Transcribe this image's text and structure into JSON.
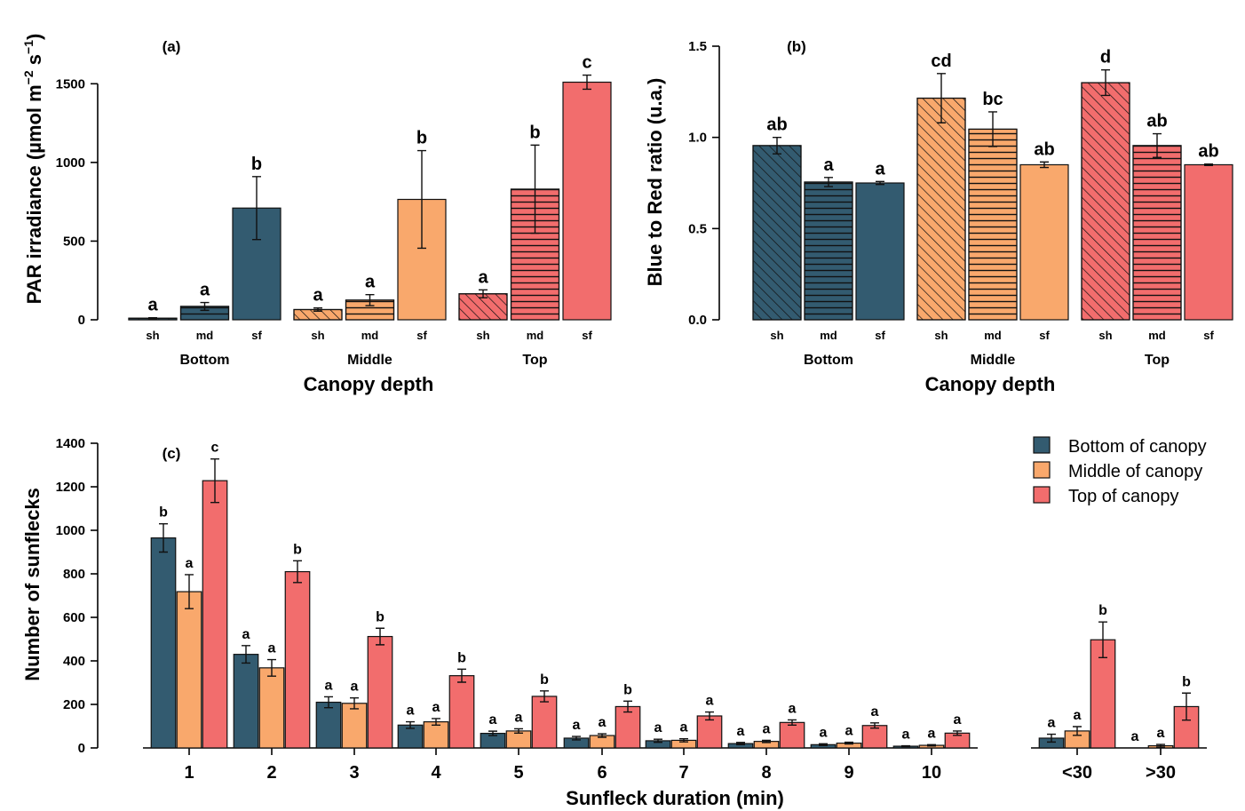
{
  "colors": {
    "bottom": "#335b70",
    "middle": "#f9a86c",
    "top": "#f26d6d"
  },
  "legend": {
    "position": "top-right",
    "items": [
      {
        "label": "Bottom of canopy",
        "color_key": "bottom"
      },
      {
        "label": "Middle of canopy",
        "color_key": "middle"
      },
      {
        "label": "Top of canopy",
        "color_key": "top"
      }
    ]
  },
  "chart_data": [
    {
      "id": "a",
      "panel_label": "(a)",
      "type": "bar",
      "ylabel": "PAR irradiance (µmol m",
      "ylabel_sup1": "−2",
      "ylabel_mid": " s",
      "ylabel_sup2": "−1",
      "ylabel_end": ")",
      "xlabel": "Canopy depth",
      "ylim": [
        0,
        1750
      ],
      "yticks": [
        0,
        500,
        1000,
        1500
      ],
      "ytick_labels": [
        "0",
        "500",
        "1000",
        "1500"
      ],
      "groups": [
        "Bottom",
        "Middle",
        "Top"
      ],
      "categories": [
        "sh",
        "md",
        "sf"
      ],
      "bars": [
        {
          "group": "Bottom",
          "category": "sh",
          "value": 10,
          "err": 3,
          "sig": "a",
          "color_key": "bottom",
          "pattern": "diagonal"
        },
        {
          "group": "Bottom",
          "category": "md",
          "value": 85,
          "err": 25,
          "sig": "a",
          "color_key": "bottom",
          "pattern": "horizontal"
        },
        {
          "group": "Bottom",
          "category": "sf",
          "value": 710,
          "err": 200,
          "sig": "b",
          "color_key": "bottom",
          "pattern": "solid"
        },
        {
          "group": "Middle",
          "category": "sh",
          "value": 65,
          "err": 10,
          "sig": "a",
          "color_key": "middle",
          "pattern": "diagonal"
        },
        {
          "group": "Middle",
          "category": "md",
          "value": 125,
          "err": 35,
          "sig": "a",
          "color_key": "middle",
          "pattern": "horizontal"
        },
        {
          "group": "Middle",
          "category": "sf",
          "value": 765,
          "err": 310,
          "sig": "b",
          "color_key": "middle",
          "pattern": "solid"
        },
        {
          "group": "Top",
          "category": "sh",
          "value": 165,
          "err": 25,
          "sig": "a",
          "color_key": "top",
          "pattern": "diagonal"
        },
        {
          "group": "Top",
          "category": "md",
          "value": 830,
          "err": 280,
          "sig": "b",
          "color_key": "top",
          "pattern": "horizontal"
        },
        {
          "group": "Top",
          "category": "sf",
          "value": 1510,
          "err": 45,
          "sig": "c",
          "color_key": "top",
          "pattern": "solid"
        }
      ]
    },
    {
      "id": "b",
      "panel_label": "(b)",
      "type": "bar",
      "ylabel": "Blue to Red ratio (u.a.)",
      "xlabel": "Canopy depth",
      "ylim": [
        0,
        1.5
      ],
      "yticks": [
        0,
        0.5,
        1.0,
        1.5
      ],
      "ytick_labels": [
        "0.0",
        "0.5",
        "1.0",
        "1.5"
      ],
      "groups": [
        "Bottom",
        "Middle",
        "Top"
      ],
      "categories": [
        "sh",
        "md",
        "sf"
      ],
      "bars": [
        {
          "group": "Bottom",
          "category": "sh",
          "value": 0.955,
          "err": 0.045,
          "sig": "ab",
          "color_key": "bottom",
          "pattern": "diagonal"
        },
        {
          "group": "Bottom",
          "category": "md",
          "value": 0.755,
          "err": 0.025,
          "sig": "a",
          "color_key": "bottom",
          "pattern": "horizontal"
        },
        {
          "group": "Bottom",
          "category": "sf",
          "value": 0.75,
          "err": 0.008,
          "sig": "a",
          "color_key": "bottom",
          "pattern": "solid"
        },
        {
          "group": "Middle",
          "category": "sh",
          "value": 1.215,
          "err": 0.135,
          "sig": "cd",
          "color_key": "middle",
          "pattern": "diagonal"
        },
        {
          "group": "Middle",
          "category": "md",
          "value": 1.045,
          "err": 0.095,
          "sig": "bc",
          "color_key": "middle",
          "pattern": "horizontal"
        },
        {
          "group": "Middle",
          "category": "sf",
          "value": 0.85,
          "err": 0.015,
          "sig": "ab",
          "color_key": "middle",
          "pattern": "solid"
        },
        {
          "group": "Top",
          "category": "sh",
          "value": 1.3,
          "err": 0.07,
          "sig": "d",
          "color_key": "top",
          "pattern": "diagonal"
        },
        {
          "group": "Top",
          "category": "md",
          "value": 0.955,
          "err": 0.065,
          "sig": "ab",
          "color_key": "top",
          "pattern": "horizontal"
        },
        {
          "group": "Top",
          "category": "sf",
          "value": 0.85,
          "err": 0.004,
          "sig": "ab",
          "color_key": "top",
          "pattern": "solid"
        }
      ]
    },
    {
      "id": "c",
      "panel_label": "(c)",
      "type": "bar",
      "ylabel": "Number of sunflecks",
      "xlabel": "Sunfleck duration (min)",
      "ylim": [
        0,
        1400
      ],
      "yticks": [
        0,
        200,
        400,
        600,
        800,
        1000,
        1200,
        1400
      ],
      "ytick_labels": [
        "0",
        "200",
        "400",
        "600",
        "800",
        "1000",
        "1200",
        "1400"
      ],
      "categories": [
        "1",
        "2",
        "3",
        "4",
        "5",
        "6",
        "7",
        "8",
        "9",
        "10",
        "<30",
        ">30"
      ],
      "series": [
        {
          "name": "Bottom of canopy",
          "color_key": "bottom",
          "values": [
            965,
            430,
            210,
            105,
            67,
            45,
            33,
            20,
            15,
            8,
            45,
            0
          ],
          "errors": [
            65,
            40,
            25,
            15,
            10,
            8,
            7,
            5,
            4,
            2,
            18,
            0
          ],
          "sig": [
            "b",
            "a",
            "a",
            "a",
            "a",
            "a",
            "a",
            "a",
            "a",
            "a",
            "a",
            "a"
          ]
        },
        {
          "name": "Middle of canopy",
          "color_key": "middle",
          "values": [
            718,
            368,
            205,
            120,
            78,
            57,
            35,
            30,
            22,
            12,
            78,
            10
          ],
          "errors": [
            78,
            38,
            25,
            15,
            10,
            8,
            7,
            5,
            4,
            3,
            20,
            6
          ],
          "sig": [
            "a",
            "a",
            "a",
            "a",
            "a",
            "a",
            "a",
            "a",
            "a",
            "a",
            "a",
            "a"
          ]
        },
        {
          "name": "Top of canopy",
          "color_key": "top",
          "values": [
            1228,
            810,
            512,
            332,
            237,
            190,
            147,
            117,
            103,
            68,
            497,
            190
          ],
          "errors": [
            100,
            50,
            38,
            30,
            25,
            25,
            18,
            12,
            12,
            10,
            82,
            62
          ],
          "sig": [
            "c",
            "b",
            "b",
            "b",
            "b",
            "b",
            "a",
            "a",
            "a",
            "a",
            "b",
            "b"
          ]
        }
      ]
    }
  ]
}
